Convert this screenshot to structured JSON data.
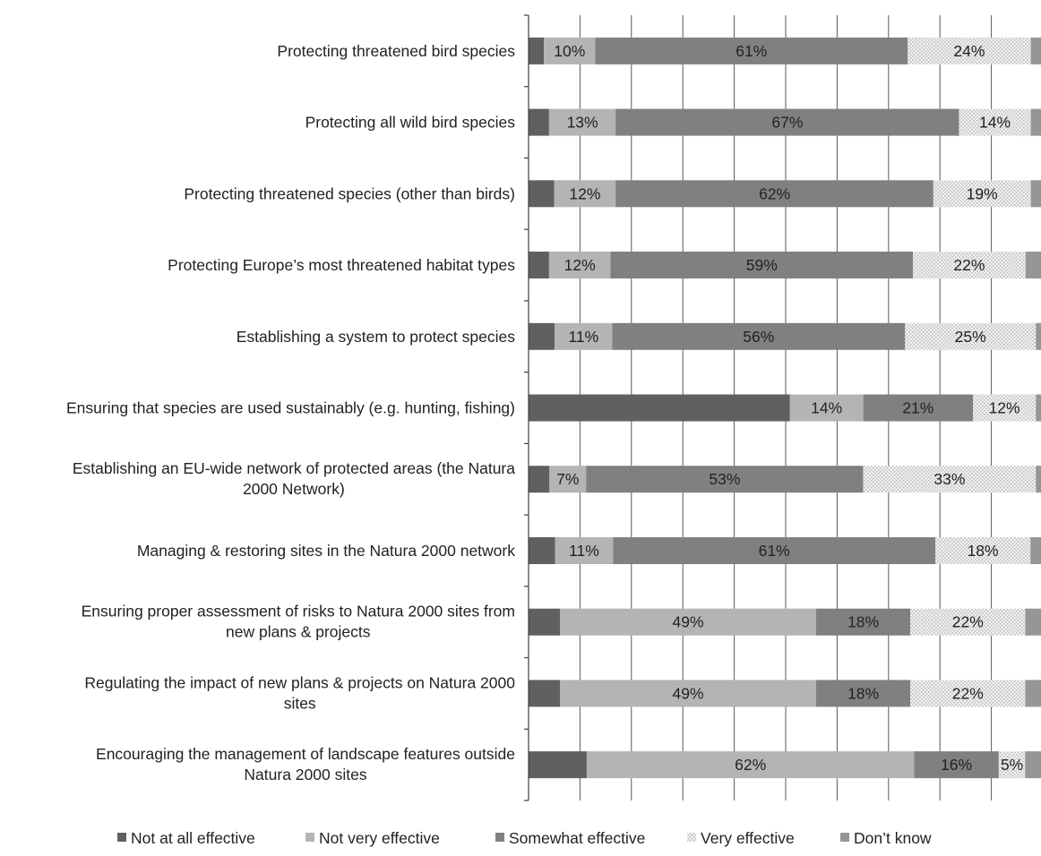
{
  "chart_data": {
    "type": "bar",
    "orientation": "horizontal",
    "stacked": true,
    "stack_mode": "percent",
    "xlim": [
      0,
      100
    ],
    "grid": true,
    "legend_position": "bottom",
    "categories": [
      "Protecting threatened bird species",
      "Protecting all wild bird species",
      "Protecting threatened species (other than birds)",
      "Protecting Europe’s most threatened habitat types",
      "Establishing a system to protect species",
      "Ensuring that species are used sustainably (e.g. hunting, fishing)",
      "Establishing an EU-wide network of protected areas (the Natura 2000 Network)",
      "Managing & restoring sites in the Natura 2000 network",
      "Ensuring proper assessment of risks to Natura 2000 sites from new plans & projects",
      "Regulating the impact of new plans & projects on Natura 2000 sites",
      "Encouraging the management of landscape features outside Natura 2000 sites"
    ],
    "category_lines": [
      [
        "Protecting threatened bird species"
      ],
      [
        "Protecting all wild bird species"
      ],
      [
        "Protecting threatened species (other than birds)"
      ],
      [
        "Protecting Europe’s most threatened habitat types"
      ],
      [
        "Establishing a system to protect species"
      ],
      [
        "Ensuring that species are used sustainably (e.g. hunting, fishing)"
      ],
      [
        "Establishing an EU-wide network of protected areas (the Natura",
        "2000 Network)"
      ],
      [
        "Managing & restoring sites in the Natura 2000 network"
      ],
      [
        "Ensuring proper assessment of risks to Natura 2000 sites from",
        "new plans & projects"
      ],
      [
        "Regulating the impact of new plans & projects on Natura 2000",
        "sites"
      ],
      [
        "Encouraging the management of landscape features outside",
        "Natura 2000 sites"
      ]
    ],
    "series": [
      {
        "name": "Not at all effective",
        "color": "#606060",
        "pattern": "solid",
        "values": [
          3,
          4,
          5,
          4,
          5,
          50,
          4,
          5,
          6,
          6,
          11
        ],
        "labels": [
          "",
          "",
          "",
          "",
          "",
          "",
          "",
          "",
          "",
          "",
          ""
        ]
      },
      {
        "name": "Not very effective",
        "color": "#b4b4b4",
        "pattern": "solid",
        "values": [
          10,
          13,
          12,
          12,
          11,
          14,
          7,
          11,
          49,
          49,
          62
        ],
        "labels": [
          "10%",
          "13%",
          "12%",
          "12%",
          "11%",
          "14%",
          "7%",
          "11%",
          "49%",
          "49%",
          "62%"
        ]
      },
      {
        "name": "Somewhat effective",
        "color": "#808080",
        "pattern": "solid",
        "values": [
          61,
          67,
          62,
          59,
          56,
          21,
          53,
          61,
          18,
          18,
          16
        ],
        "labels": [
          "61%",
          "67%",
          "62%",
          "59%",
          "56%",
          "21%",
          "53%",
          "61%",
          "18%",
          "18%",
          "16%"
        ]
      },
      {
        "name": "Very effective",
        "color": "#dcdcdc",
        "pattern": "dots",
        "values": [
          24,
          14,
          19,
          22,
          25,
          12,
          33,
          18,
          22,
          22,
          5
        ],
        "labels": [
          "24%",
          "14%",
          "19%",
          "22%",
          "25%",
          "12%",
          "33%",
          "18%",
          "22%",
          "22%",
          "5%"
        ]
      },
      {
        "name": "Don’t know",
        "color": "#969696",
        "pattern": "solid",
        "values": [
          2,
          2,
          2,
          3,
          1,
          1,
          1,
          2,
          3,
          3,
          3
        ],
        "labels": [
          "",
          "",
          "",
          "",
          "",
          "",
          "",
          "",
          "",
          "",
          ""
        ]
      }
    ]
  }
}
